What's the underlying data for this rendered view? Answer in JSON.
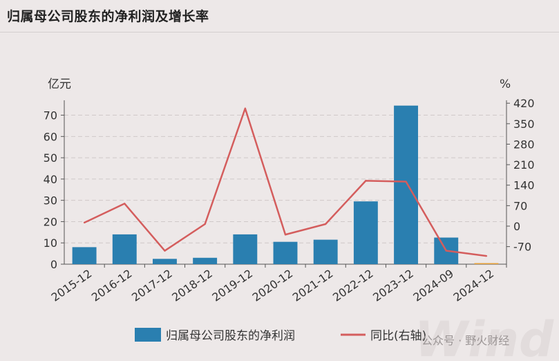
{
  "header": {
    "title": "归属母公司股东的净利润及增长率"
  },
  "chart_data": {
    "type": "bar",
    "title": "归属母公司股东的净利润及增长率",
    "categories": [
      "2015-12",
      "2016-12",
      "2017-12",
      "2018-12",
      "2019-12",
      "2020-12",
      "2021-12",
      "2022-12",
      "2023-12",
      "2024-09",
      "2024-12"
    ],
    "left_axis": {
      "unit": "亿元",
      "ylim": [
        0,
        77
      ],
      "ticks": [
        0,
        10,
        20,
        30,
        40,
        50,
        60,
        70
      ]
    },
    "right_axis": {
      "unit": "%",
      "ylim": [
        -130,
        430
      ],
      "ticks": [
        -70,
        0,
        70,
        140,
        210,
        280,
        350,
        420
      ]
    },
    "series": [
      {
        "name": "归属母公司股东的净利润",
        "type": "bar",
        "axis": "left",
        "color": "#2a7fb0",
        "values": [
          8,
          14,
          2.5,
          3,
          14,
          10.5,
          11.5,
          29.5,
          74.5,
          12.5,
          0.5
        ]
      },
      {
        "name": "同比(右轴)",
        "type": "line",
        "axis": "right",
        "color": "#d45d5d",
        "values": [
          12,
          77,
          -84,
          7,
          402,
          -29,
          7,
          155,
          152,
          -84,
          -102
        ]
      }
    ],
    "highlight_bar": {
      "index": 10,
      "color": "#e6a23c"
    },
    "grid": true,
    "legend_position": "bottom"
  },
  "watermark": {
    "text": "公众号 · 野火财经",
    "logo": "Wind"
  }
}
